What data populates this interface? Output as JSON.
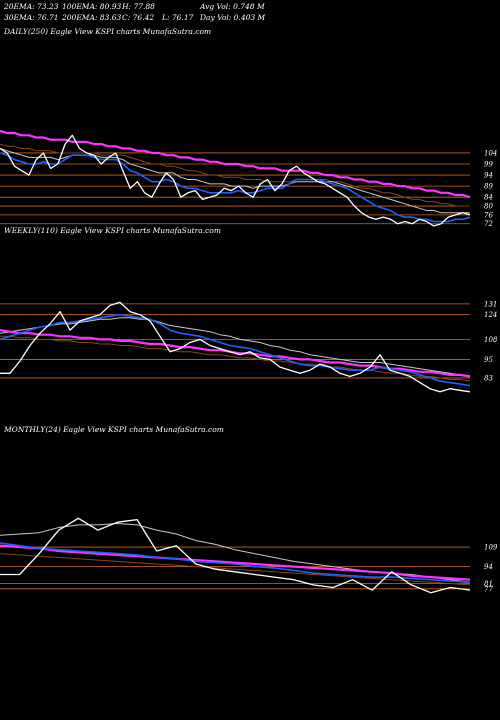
{
  "stats": {
    "ema20": "20EMA: 73.23",
    "ema100": "100EMA: 80.93",
    "high": "H: 77.88",
    "avg_vol": "Avg Vol: 0.748  M",
    "ema30": "30EMA: 76.71",
    "ema200": "200EMA: 83.63",
    "close": "C: 76.42",
    "low": "L: 76.17",
    "day_vol": "Day Vol: 0.403  M"
  },
  "colors": {
    "background": "#000000",
    "level_line": "#d2691e",
    "price": "#ffffff",
    "ema_short": "#1e5fff",
    "ema_long": "#ff33ff",
    "ema_mid": "#c8c8c8",
    "ema_brown": "#8b4513"
  },
  "chart_data": [
    {
      "type": "line",
      "title": "DAILY(250) Eagle  View  KSPI charts MunafaSutra.com",
      "y_range": [
        66,
        118
      ],
      "level_labels": [
        "104",
        "99",
        "94",
        "89",
        "84",
        "80",
        "76",
        "72"
      ],
      "levels": [
        104,
        99,
        94,
        89,
        84,
        80,
        76,
        72
      ],
      "series": [
        {
          "role": "price",
          "values": [
            106,
            104,
            98,
            96,
            94,
            101,
            104,
            97,
            99,
            108,
            112,
            106,
            104,
            103,
            99,
            102,
            104,
            96,
            88,
            91,
            86,
            84,
            90,
            95,
            92,
            84,
            86,
            87,
            83,
            84,
            85,
            88,
            87,
            89,
            86,
            84,
            90,
            92,
            87,
            90,
            96,
            98,
            95,
            93,
            91,
            90,
            88,
            86,
            84,
            80,
            77,
            75,
            74,
            75,
            74,
            72,
            73,
            72,
            74,
            73,
            71,
            72,
            75,
            76,
            77,
            76
          ]
        },
        {
          "role": "ema_short",
          "values": [
            104,
            103,
            101,
            100,
            99,
            99,
            100,
            99,
            99,
            101,
            103,
            103,
            103,
            102,
            101,
            101,
            101,
            99,
            96,
            95,
            93,
            91,
            91,
            92,
            91,
            89,
            88,
            88,
            87,
            86,
            86,
            86,
            86,
            87,
            86,
            86,
            87,
            88,
            88,
            88,
            90,
            92,
            92,
            92,
            92,
            91,
            90,
            89,
            88,
            86,
            84,
            82,
            80,
            79,
            78,
            76,
            75,
            75,
            74,
            74,
            73,
            73,
            73,
            74,
            74,
            75
          ]
        },
        {
          "role": "ema_mid",
          "values": [
            106,
            105,
            104,
            103,
            102,
            102,
            102,
            102,
            101,
            102,
            103,
            103,
            103,
            103,
            102,
            102,
            102,
            101,
            99,
            98,
            97,
            96,
            95,
            95,
            95,
            93,
            92,
            92,
            91,
            90,
            90,
            90,
            89,
            89,
            89,
            88,
            89,
            89,
            89,
            89,
            90,
            91,
            91,
            91,
            91,
            91,
            91,
            90,
            89,
            88,
            87,
            86,
            85,
            84,
            83,
            82,
            81,
            80,
            79,
            78,
            78,
            77,
            77,
            77,
            77,
            77
          ]
        },
        {
          "role": "ema_brown",
          "values": [
            108,
            107,
            107,
            106,
            106,
            105,
            105,
            105,
            104,
            104,
            104,
            104,
            104,
            104,
            103,
            103,
            103,
            103,
            102,
            101,
            100,
            99,
            99,
            98,
            98,
            97,
            96,
            96,
            95,
            94,
            94,
            93,
            93,
            93,
            92,
            92,
            92,
            91,
            91,
            91,
            91,
            92,
            92,
            92,
            92,
            92,
            91,
            91,
            90,
            89,
            88,
            88,
            87,
            86,
            86,
            85,
            84,
            83,
            83,
            82,
            82,
            81,
            81,
            80,
            80,
            80
          ]
        },
        {
          "role": "ema_long",
          "values": [
            114,
            113,
            113,
            112,
            112,
            111,
            111,
            110,
            110,
            110,
            109,
            109,
            109,
            108,
            108,
            107,
            107,
            106,
            106,
            105,
            105,
            104,
            104,
            103,
            103,
            102,
            102,
            101,
            101,
            100,
            100,
            99,
            99,
            99,
            98,
            98,
            97,
            97,
            97,
            96,
            96,
            96,
            96,
            95,
            95,
            94,
            94,
            93,
            93,
            92,
            92,
            91,
            91,
            90,
            90,
            89,
            89,
            88,
            88,
            87,
            87,
            86,
            86,
            85,
            85,
            84
          ]
        }
      ]
    },
    {
      "type": "line",
      "title": "WEEKLY(110) Eagle  View  KSPI charts MunafaSutra.com",
      "y_range": [
        70,
        140
      ],
      "level_labels": [
        "131",
        "124",
        "108",
        "95",
        "83"
      ],
      "levels": [
        131,
        124,
        108,
        95,
        83
      ],
      "series": [
        {
          "role": "price",
          "values": [
            86,
            86,
            94,
            104,
            112,
            118,
            126,
            114,
            120,
            122,
            124,
            130,
            132,
            126,
            124,
            120,
            110,
            100,
            102,
            106,
            108,
            104,
            102,
            100,
            98,
            100,
            96,
            95,
            90,
            88,
            86,
            88,
            92,
            90,
            86,
            84,
            86,
            90,
            98,
            88,
            86,
            84,
            80,
            76,
            74,
            76,
            75,
            74
          ]
        },
        {
          "role": "ema_short",
          "values": [
            108,
            110,
            112,
            114,
            116,
            117,
            119,
            119,
            120,
            121,
            122,
            123,
            124,
            123,
            122,
            121,
            118,
            114,
            112,
            111,
            110,
            108,
            106,
            104,
            103,
            102,
            100,
            98,
            96,
            94,
            92,
            91,
            91,
            90,
            89,
            88,
            88,
            88,
            90,
            89,
            88,
            87,
            85,
            83,
            81,
            80,
            79,
            78
          ]
        },
        {
          "role": "ema_mid",
          "values": [
            112,
            113,
            114,
            115,
            116,
            117,
            118,
            118,
            119,
            120,
            121,
            121,
            122,
            122,
            121,
            121,
            119,
            117,
            116,
            115,
            114,
            113,
            111,
            110,
            108,
            107,
            106,
            104,
            103,
            101,
            100,
            98,
            97,
            96,
            95,
            94,
            93,
            93,
            93,
            92,
            91,
            90,
            89,
            88,
            87,
            86,
            85,
            84
          ]
        },
        {
          "role": "ema_long",
          "values": [
            114,
            113,
            112,
            112,
            111,
            111,
            110,
            110,
            109,
            109,
            108,
            108,
            107,
            107,
            106,
            105,
            105,
            104,
            103,
            103,
            102,
            101,
            101,
            100,
            99,
            99,
            98,
            97,
            97,
            96,
            95,
            95,
            94,
            93,
            93,
            92,
            91,
            91,
            90,
            89,
            89,
            88,
            87,
            87,
            86,
            85,
            85,
            84
          ]
        },
        {
          "role": "ema_brown",
          "values": [
            110,
            110,
            109,
            109,
            108,
            108,
            107,
            107,
            106,
            106,
            105,
            105,
            104,
            104,
            103,
            102,
            102,
            101,
            100,
            100,
            99,
            98,
            98,
            97,
            96,
            96,
            95,
            94,
            94,
            93,
            92,
            92,
            91,
            90,
            90,
            89,
            88,
            88,
            87,
            86,
            86,
            85,
            84,
            84,
            83,
            82,
            82,
            81
          ]
        }
      ]
    },
    {
      "type": "line",
      "title": "MONTHLY(24) Eagle  View  KSPI charts MunafaSutra.com",
      "y_range": [
        60,
        155
      ],
      "level_labels": [
        "109",
        "94",
        "81",
        "77"
      ],
      "levels": [
        109,
        94,
        81,
        77
      ],
      "series": [
        {
          "role": "price",
          "values": [
            88,
            88,
            104,
            122,
            131,
            122,
            128,
            130,
            106,
            110,
            96,
            92,
            90,
            88,
            86,
            84,
            80,
            78,
            84,
            76,
            90,
            80,
            74,
            78,
            76
          ]
        },
        {
          "role": "ema_short",
          "values": [
            112,
            110,
            108,
            107,
            106,
            105,
            104,
            103,
            101,
            100,
            98,
            97,
            96,
            94,
            93,
            91,
            89,
            88,
            87,
            86,
            86,
            85,
            84,
            83,
            82
          ]
        },
        {
          "role": "ema_mid",
          "values": [
            118,
            119,
            120,
            124,
            126,
            126,
            127,
            126,
            122,
            119,
            114,
            111,
            107,
            104,
            101,
            98,
            96,
            94,
            92,
            90,
            89,
            88,
            86,
            84,
            82
          ]
        },
        {
          "role": "ema_long",
          "values": [
            110,
            109,
            108,
            106,
            105,
            104,
            103,
            102,
            101,
            100,
            99,
            98,
            97,
            96,
            95,
            94,
            93,
            92,
            91,
            90,
            89,
            87,
            86,
            85,
            84
          ]
        },
        {
          "role": "ema_brown",
          "values": [
            104,
            103,
            102,
            101,
            100,
            99,
            98,
            97,
            96,
            95,
            94,
            93,
            92,
            91,
            90,
            89,
            88,
            87,
            86,
            85,
            84,
            83,
            82,
            81,
            80
          ]
        }
      ]
    }
  ]
}
